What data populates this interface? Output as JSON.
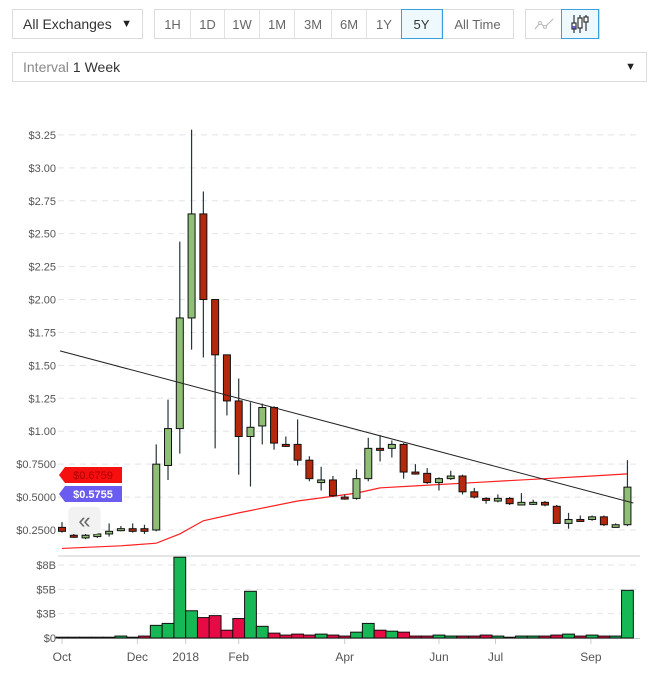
{
  "toolbar": {
    "exchange_select": "All Exchanges",
    "ranges": [
      "1H",
      "1D",
      "1W",
      "1M",
      "3M",
      "6M",
      "1Y",
      "5Y",
      "All Time"
    ],
    "active_range": "5Y",
    "chart_types": [
      {
        "icon": "line-chart-icon",
        "active": false
      },
      {
        "icon": "candlestick-icon",
        "active": true
      }
    ],
    "interval_label": "Interval",
    "interval_value": "1 Week"
  },
  "colors": {
    "candle_up": "#8fbf76",
    "candle_down": "#b6280b",
    "volume_up": "#16b855",
    "volume_down": "#e60b45",
    "moving_average": "#ff2020",
    "trendline": "#222222",
    "accent": "#3aa0e0",
    "badge_ma": "#f50f0f",
    "badge_price": "#6a5cf0"
  },
  "chart_data": {
    "type": "candlestick",
    "interval": "1 Week",
    "start_date": "2017-10-16",
    "price_axis": {
      "ylim": [
        0.1,
        3.3
      ],
      "ticks": [
        {
          "value": 3.25,
          "label": "$3.25"
        },
        {
          "value": 3.0,
          "label": "$3.00"
        },
        {
          "value": 2.75,
          "label": "$2.75"
        },
        {
          "value": 2.5,
          "label": "$2.50"
        },
        {
          "value": 2.25,
          "label": "$2.25"
        },
        {
          "value": 2.0,
          "label": "$2.00"
        },
        {
          "value": 1.75,
          "label": "$1.75"
        },
        {
          "value": 1.5,
          "label": "$1.50"
        },
        {
          "value": 1.25,
          "label": "$1.25"
        },
        {
          "value": 1.0,
          "label": "$1.00"
        },
        {
          "value": 0.75,
          "label": "$0.7500"
        },
        {
          "value": 0.5,
          "label": "$0.5000"
        },
        {
          "value": 0.25,
          "label": "$0.2500"
        }
      ],
      "grid": true
    },
    "volume_axis": {
      "unit": "B",
      "ticks": [
        {
          "value": 7.5,
          "label": "$8B"
        },
        {
          "value": 5,
          "label": "$5B"
        },
        {
          "value": 2.5,
          "label": "$3B"
        },
        {
          "value": 0,
          "label": "$0"
        }
      ],
      "grid": true
    },
    "x_ticks": [
      {
        "label": "Oct",
        "week": 0
      },
      {
        "label": "Dec",
        "week": 6.4
      },
      {
        "label": "2018",
        "week": 10.5
      },
      {
        "label": "Feb",
        "week": 15
      },
      {
        "label": "Apr",
        "week": 24
      },
      {
        "label": "Jun",
        "week": 32
      },
      {
        "label": "Jul",
        "week": 36.8
      },
      {
        "label": "Sep",
        "week": 44.9
      }
    ],
    "ohlc": [
      [
        0.27,
        0.31,
        0.23,
        0.24
      ],
      [
        0.21,
        0.23,
        0.19,
        0.2
      ],
      [
        0.19,
        0.22,
        0.18,
        0.21
      ],
      [
        0.2,
        0.23,
        0.19,
        0.22
      ],
      [
        0.22,
        0.3,
        0.2,
        0.24
      ],
      [
        0.25,
        0.28,
        0.24,
        0.26
      ],
      [
        0.26,
        0.3,
        0.23,
        0.24
      ],
      [
        0.26,
        0.29,
        0.22,
        0.24
      ],
      [
        0.25,
        0.9,
        0.24,
        0.75
      ],
      [
        0.74,
        1.24,
        0.63,
        1.02
      ],
      [
        1.02,
        2.44,
        0.83,
        1.86
      ],
      [
        1.86,
        3.29,
        1.62,
        2.65
      ],
      [
        2.65,
        2.82,
        1.56,
        2.0
      ],
      [
        2.0,
        2.0,
        0.87,
        1.58
      ],
      [
        1.58,
        1.58,
        1.12,
        1.23
      ],
      [
        1.23,
        1.4,
        0.67,
        0.96
      ],
      [
        0.96,
        1.22,
        0.58,
        1.03
      ],
      [
        1.04,
        1.21,
        0.9,
        1.18
      ],
      [
        1.18,
        1.19,
        0.86,
        0.91
      ],
      [
        0.9,
        0.96,
        0.88,
        0.89
      ],
      [
        0.9,
        1.09,
        0.74,
        0.78
      ],
      [
        0.78,
        0.81,
        0.62,
        0.64
      ],
      [
        0.61,
        0.73,
        0.55,
        0.63
      ],
      [
        0.63,
        0.66,
        0.5,
        0.51
      ],
      [
        0.5,
        0.52,
        0.48,
        0.49
      ],
      [
        0.49,
        0.71,
        0.48,
        0.64
      ],
      [
        0.64,
        0.95,
        0.62,
        0.87
      ],
      [
        0.87,
        0.97,
        0.77,
        0.86
      ],
      [
        0.87,
        0.93,
        0.8,
        0.9
      ],
      [
        0.9,
        0.91,
        0.64,
        0.69
      ],
      [
        0.69,
        0.75,
        0.67,
        0.68
      ],
      [
        0.68,
        0.72,
        0.6,
        0.61
      ],
      [
        0.61,
        0.65,
        0.55,
        0.64
      ],
      [
        0.64,
        0.7,
        0.63,
        0.66
      ],
      [
        0.66,
        0.67,
        0.52,
        0.54
      ],
      [
        0.54,
        0.57,
        0.49,
        0.5
      ],
      [
        0.49,
        0.5,
        0.45,
        0.48
      ],
      [
        0.47,
        0.52,
        0.46,
        0.49
      ],
      [
        0.49,
        0.5,
        0.44,
        0.45
      ],
      [
        0.44,
        0.53,
        0.44,
        0.46
      ],
      [
        0.45,
        0.48,
        0.44,
        0.46
      ],
      [
        0.46,
        0.47,
        0.43,
        0.44
      ],
      [
        0.43,
        0.44,
        0.3,
        0.3
      ],
      [
        0.3,
        0.38,
        0.26,
        0.33
      ],
      [
        0.33,
        0.36,
        0.32,
        0.32
      ],
      [
        0.33,
        0.36,
        0.32,
        0.35
      ],
      [
        0.35,
        0.36,
        0.28,
        0.29
      ],
      [
        0.27,
        0.3,
        0.27,
        0.29
      ],
      [
        0.29,
        0.78,
        0.28,
        0.5755
      ]
    ],
    "volume_billions": [
      0.05,
      0.0,
      0.05,
      0.05,
      0.05,
      0.2,
      0.05,
      0.2,
      1.3,
      1.5,
      8.3,
      2.8,
      2.1,
      2.3,
      0.8,
      2.0,
      4.8,
      1.2,
      0.5,
      0.3,
      0.4,
      0.3,
      0.4,
      0.3,
      0.2,
      0.6,
      1.5,
      0.8,
      0.7,
      0.6,
      0.2,
      0.2,
      0.3,
      0.2,
      0.2,
      0.2,
      0.3,
      0.2,
      0.05,
      0.2,
      0.2,
      0.2,
      0.3,
      0.4,
      0.2,
      0.3,
      0.2,
      0.2,
      4.9
    ],
    "moving_average": [
      [
        0,
        0.11
      ],
      [
        5,
        0.13
      ],
      [
        8,
        0.15
      ],
      [
        10,
        0.22
      ],
      [
        12,
        0.32
      ],
      [
        15,
        0.38
      ],
      [
        20,
        0.47
      ],
      [
        25,
        0.53
      ],
      [
        27,
        0.57
      ],
      [
        30,
        0.585
      ],
      [
        35,
        0.61
      ],
      [
        40,
        0.635
      ],
      [
        45,
        0.66
      ],
      [
        48,
        0.6759
      ]
    ],
    "trendline": [
      [
        0,
        1.61
      ],
      [
        48.5,
        0.455
      ]
    ],
    "badges": [
      {
        "label": "$0.6759",
        "value": 0.6759,
        "color": "#f50f0f",
        "text_color": "#b00000"
      },
      {
        "label": "$0.5755",
        "value": 0.5755,
        "color": "#6a5cf0",
        "text_color": "#ffffff"
      }
    ]
  },
  "collapse_button": "«"
}
